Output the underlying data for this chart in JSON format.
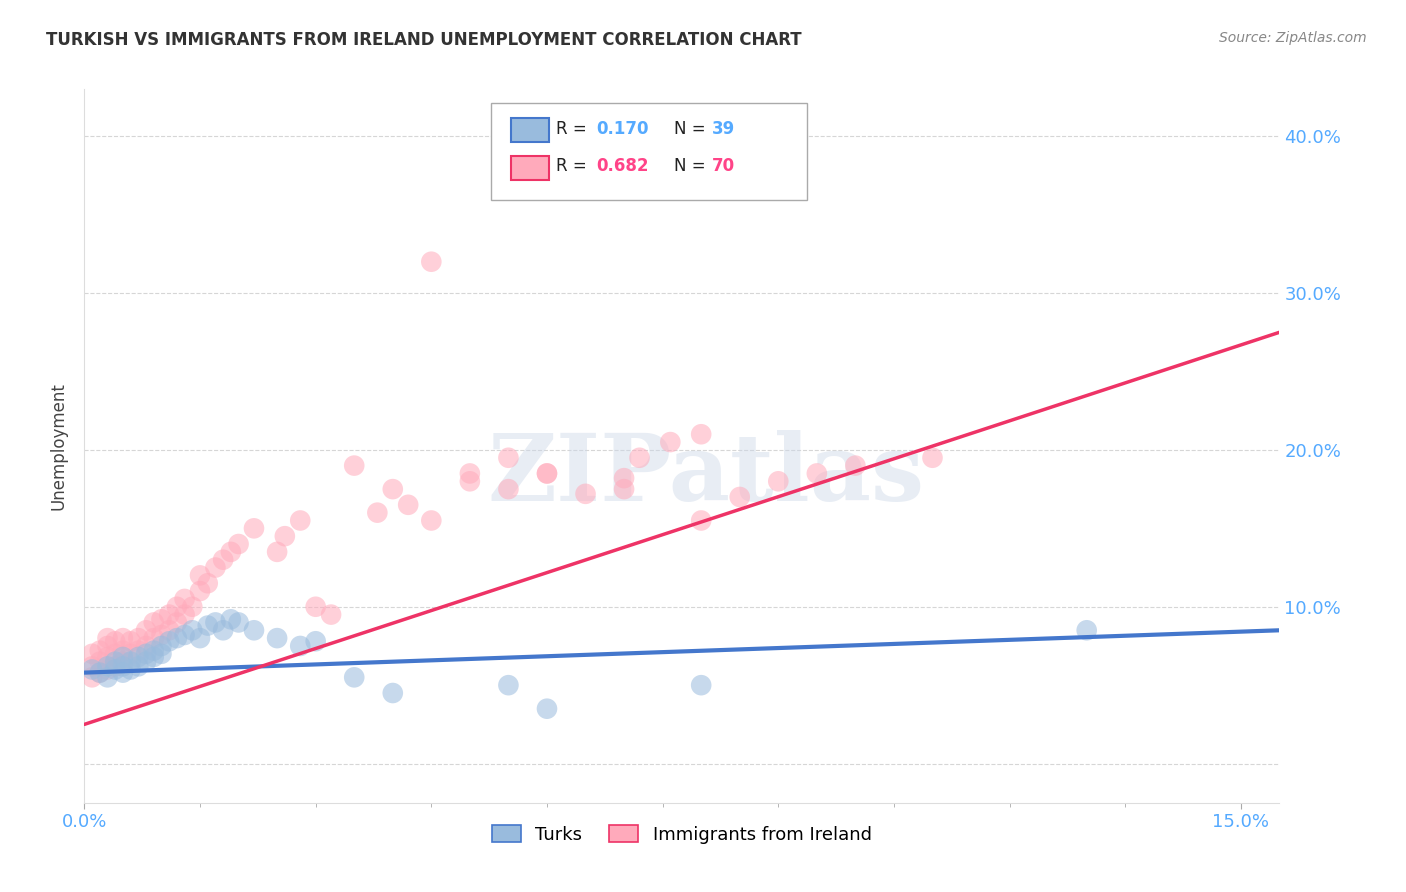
{
  "title": "TURKISH VS IMMIGRANTS FROM IRELAND UNEMPLOYMENT CORRELATION CHART",
  "source": "Source: ZipAtlas.com",
  "ylabel": "Unemployment",
  "xlim": [
    0.0,
    0.155
  ],
  "ylim": [
    -0.025,
    0.43
  ],
  "ytick_vals": [
    0.0,
    0.1,
    0.2,
    0.3,
    0.4
  ],
  "ytick_labels": [
    "",
    "10.0%",
    "20.0%",
    "30.0%",
    "40.0%"
  ],
  "xtick_vals": [
    0.0,
    0.15
  ],
  "xtick_labels": [
    "0.0%",
    "15.0%"
  ],
  "background_color": "#ffffff",
  "grid_color": "#cccccc",
  "watermark_text": "ZIPatlas",
  "color_blue": "#99bbdd",
  "color_pink": "#ffaabb",
  "color_blue_line": "#4477cc",
  "color_pink_line": "#ee3366",
  "color_blue_text": "#55aaff",
  "color_pink_text": "#ff4488",
  "turks_x": [
    0.001,
    0.002,
    0.003,
    0.003,
    0.004,
    0.004,
    0.005,
    0.005,
    0.005,
    0.006,
    0.006,
    0.007,
    0.007,
    0.008,
    0.008,
    0.009,
    0.009,
    0.01,
    0.01,
    0.011,
    0.012,
    0.013,
    0.014,
    0.015,
    0.016,
    0.017,
    0.018,
    0.019,
    0.02,
    0.022,
    0.025,
    0.028,
    0.03,
    0.035,
    0.04,
    0.055,
    0.06,
    0.08,
    0.13
  ],
  "turks_y": [
    0.06,
    0.058,
    0.062,
    0.055,
    0.06,
    0.065,
    0.058,
    0.062,
    0.068,
    0.06,
    0.065,
    0.062,
    0.068,
    0.07,
    0.065,
    0.072,
    0.068,
    0.07,
    0.075,
    0.078,
    0.08,
    0.082,
    0.085,
    0.08,
    0.088,
    0.09,
    0.085,
    0.092,
    0.09,
    0.085,
    0.08,
    0.075,
    0.078,
    0.055,
    0.045,
    0.05,
    0.035,
    0.05,
    0.085
  ],
  "ireland_x": [
    0.001,
    0.001,
    0.001,
    0.002,
    0.002,
    0.002,
    0.003,
    0.003,
    0.003,
    0.003,
    0.004,
    0.004,
    0.004,
    0.005,
    0.005,
    0.005,
    0.006,
    0.006,
    0.007,
    0.007,
    0.008,
    0.008,
    0.009,
    0.009,
    0.01,
    0.01,
    0.011,
    0.011,
    0.012,
    0.012,
    0.013,
    0.013,
    0.014,
    0.015,
    0.015,
    0.016,
    0.017,
    0.018,
    0.019,
    0.02,
    0.022,
    0.025,
    0.026,
    0.028,
    0.03,
    0.032,
    0.035,
    0.038,
    0.04,
    0.042,
    0.045,
    0.05,
    0.055,
    0.06,
    0.065,
    0.07,
    0.072,
    0.076,
    0.08,
    0.085,
    0.09,
    0.095,
    0.1,
    0.11,
    0.05,
    0.08,
    0.045,
    0.055,
    0.06,
    0.07
  ],
  "ireland_y": [
    0.055,
    0.062,
    0.07,
    0.058,
    0.065,
    0.072,
    0.06,
    0.068,
    0.075,
    0.08,
    0.062,
    0.07,
    0.078,
    0.065,
    0.072,
    0.08,
    0.07,
    0.078,
    0.072,
    0.08,
    0.075,
    0.085,
    0.08,
    0.09,
    0.082,
    0.092,
    0.085,
    0.095,
    0.09,
    0.1,
    0.095,
    0.105,
    0.1,
    0.11,
    0.12,
    0.115,
    0.125,
    0.13,
    0.135,
    0.14,
    0.15,
    0.135,
    0.145,
    0.155,
    0.1,
    0.095,
    0.19,
    0.16,
    0.175,
    0.165,
    0.155,
    0.18,
    0.195,
    0.185,
    0.172,
    0.182,
    0.195,
    0.205,
    0.21,
    0.17,
    0.18,
    0.185,
    0.19,
    0.195,
    0.185,
    0.155,
    0.32,
    0.175,
    0.185,
    0.175
  ],
  "turks_trendline_x": [
    0.0,
    0.155
  ],
  "turks_trendline_y": [
    0.058,
    0.085
  ],
  "ireland_trendline_x": [
    0.0,
    0.155
  ],
  "ireland_trendline_y": [
    0.025,
    0.275
  ]
}
